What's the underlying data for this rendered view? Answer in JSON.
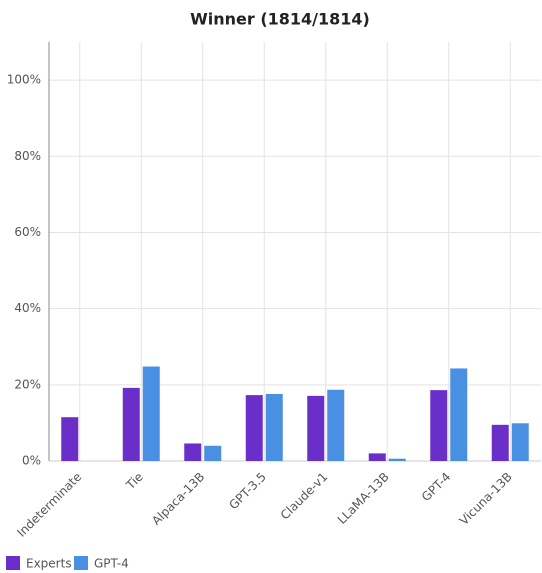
{
  "chart_data": {
    "type": "bar",
    "title": "Winner (1814/1814)",
    "categories": [
      "Indeterminate",
      "Tie",
      "Alpaca-13B",
      "GPT-3.5",
      "Claude-v1",
      "LLaMA-13B",
      "GPT-4",
      "Vicuna-13B"
    ],
    "series": [
      {
        "name": "Experts",
        "color": "#6a2fc9",
        "values": [
          11.5,
          19.2,
          4.6,
          17.3,
          17.1,
          2.0,
          18.6,
          9.5
        ]
      },
      {
        "name": "GPT-4",
        "color": "#4a90e2",
        "values": [
          0,
          24.8,
          4.0,
          17.6,
          18.7,
          0.6,
          24.3,
          9.9
        ]
      }
    ],
    "ylim": [
      0,
      110
    ],
    "yticks": [
      {
        "value": 0,
        "label": "0%"
      },
      {
        "value": 20,
        "label": "20%"
      },
      {
        "value": 40,
        "label": "40%"
      },
      {
        "value": 60,
        "label": "60%"
      },
      {
        "value": 80,
        "label": "80%"
      },
      {
        "value": 100,
        "label": "100%"
      }
    ],
    "grid": true,
    "legend": "bottom-left"
  }
}
